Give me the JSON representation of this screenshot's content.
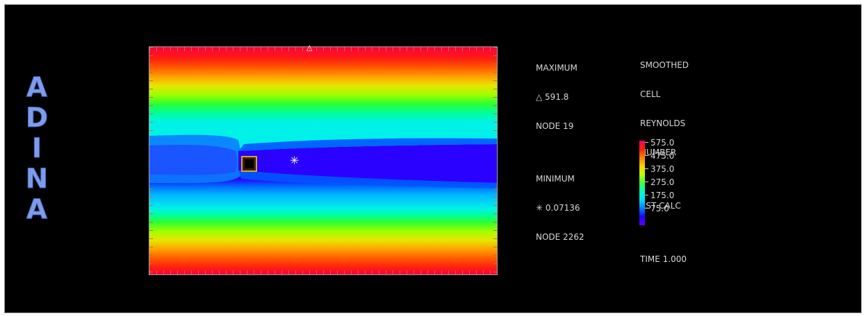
{
  "logo": {
    "letters": [
      "A",
      "D",
      "I",
      "N",
      "A"
    ]
  },
  "max_block": {
    "title": "MAXIMUM",
    "value": "△ 591.8",
    "node": "NODE 19",
    "title_min": "MINIMUM",
    "value_min": "✳ 0.07136",
    "node_min": "NODE 2262"
  },
  "result_block": {
    "line1": "SMOOTHED",
    "line2": "CELL",
    "line3": "REYNOLDS",
    "line4": "NUMBER",
    "calc": "RST CALC",
    "time": "TIME 1.000"
  },
  "colorbar": {
    "labels": [
      "575.0",
      "475.0",
      "375.0",
      "275.0",
      "175.0",
      "75.0"
    ]
  },
  "markers": {
    "max_symbol": "△",
    "min_symbol": "✳"
  },
  "colors": {
    "background": "#000000",
    "logo": "#7f9de6",
    "text": "#d8d8d8"
  }
}
